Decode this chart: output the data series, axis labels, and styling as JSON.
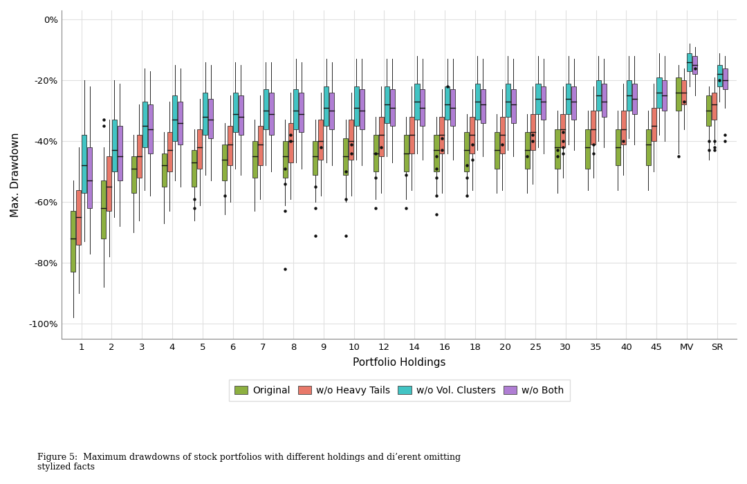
{
  "categories": [
    "1",
    "2",
    "3",
    "4",
    "5",
    "6",
    "7",
    "8",
    "9",
    "10",
    "12",
    "14",
    "16",
    "18",
    "20",
    "25",
    "30",
    "35",
    "40",
    "45",
    "MV",
    "SR"
  ],
  "series_names": [
    "Original",
    "w/o Heavy Tails",
    "w/o Vol. Clusters",
    "w/o Both"
  ],
  "colors": [
    "#8db040",
    "#e8796a",
    "#42c4c4",
    "#b07ed4"
  ],
  "ylabel": "Max. Drawdown",
  "xlabel": "Portfolio Holdings",
  "ytick_labels": [
    "-100%",
    "-80%",
    "-60%",
    "-40%",
    "-20%",
    "0%"
  ],
  "ytick_vals": [
    -1.0,
    -0.8,
    -0.6,
    -0.4,
    -0.2,
    0.0
  ],
  "figcaption": "Figure 5:  Maximum drawdowns of stock portfolios with different holdings and di’erent omitting\nstylized facts",
  "series_data": {
    "Original": {
      "1": {
        "whislo": -0.98,
        "q1": -0.83,
        "med": -0.72,
        "q3": -0.63,
        "whishi": -0.53,
        "fliers": []
      },
      "2": {
        "whislo": -0.88,
        "q1": -0.72,
        "med": -0.62,
        "q3": -0.53,
        "whishi": -0.42,
        "fliers": [
          -0.33,
          -0.35
        ]
      },
      "3": {
        "whislo": -0.7,
        "q1": -0.57,
        "med": -0.49,
        "q3": -0.45,
        "whishi": -0.38,
        "fliers": []
      },
      "4": {
        "whislo": -0.67,
        "q1": -0.55,
        "med": -0.48,
        "q3": -0.44,
        "whishi": -0.37,
        "fliers": []
      },
      "5": {
        "whislo": -0.66,
        "q1": -0.55,
        "med": -0.47,
        "q3": -0.43,
        "whishi": -0.36,
        "fliers": [
          -0.59,
          -0.62
        ]
      },
      "6": {
        "whislo": -0.64,
        "q1": -0.53,
        "med": -0.46,
        "q3": -0.41,
        "whishi": -0.34,
        "fliers": [
          -0.58
        ]
      },
      "7": {
        "whislo": -0.63,
        "q1": -0.52,
        "med": -0.45,
        "q3": -0.4,
        "whishi": -0.33,
        "fliers": []
      },
      "8": {
        "whislo": -0.61,
        "q1": -0.52,
        "med": -0.45,
        "q3": -0.4,
        "whishi": -0.33,
        "fliers": [
          -0.49,
          -0.54,
          -0.63,
          -0.82
        ]
      },
      "9": {
        "whislo": -0.6,
        "q1": -0.51,
        "med": -0.45,
        "q3": -0.4,
        "whishi": -0.33,
        "fliers": [
          -0.55,
          -0.62,
          -0.71
        ]
      },
      "10": {
        "whislo": -0.6,
        "q1": -0.51,
        "med": -0.45,
        "q3": -0.39,
        "whishi": -0.33,
        "fliers": [
          -0.5,
          -0.59,
          -0.71
        ]
      },
      "12": {
        "whislo": -0.59,
        "q1": -0.5,
        "med": -0.44,
        "q3": -0.38,
        "whishi": -0.32,
        "fliers": [
          -0.44,
          -0.52,
          -0.62
        ]
      },
      "14": {
        "whislo": -0.59,
        "q1": -0.5,
        "med": -0.44,
        "q3": -0.38,
        "whishi": -0.32,
        "fliers": [
          -0.51,
          -0.62
        ]
      },
      "16": {
        "whislo": -0.58,
        "q1": -0.5,
        "med": -0.43,
        "q3": -0.38,
        "whishi": -0.32,
        "fliers": [
          -0.45,
          -0.49,
          -0.52,
          -0.58,
          -0.64
        ]
      },
      "18": {
        "whislo": -0.58,
        "q1": -0.5,
        "med": -0.43,
        "q3": -0.37,
        "whishi": -0.31,
        "fliers": [
          -0.48,
          -0.52,
          -0.58
        ]
      },
      "20": {
        "whislo": -0.57,
        "q1": -0.49,
        "med": -0.43,
        "q3": -0.37,
        "whishi": -0.31,
        "fliers": []
      },
      "25": {
        "whislo": -0.57,
        "q1": -0.49,
        "med": -0.43,
        "q3": -0.37,
        "whishi": -0.31,
        "fliers": [
          -0.45
        ]
      },
      "30": {
        "whislo": -0.57,
        "q1": -0.49,
        "med": -0.42,
        "q3": -0.36,
        "whishi": -0.3,
        "fliers": [
          -0.43,
          -0.45
        ]
      },
      "35": {
        "whislo": -0.56,
        "q1": -0.49,
        "med": -0.42,
        "q3": -0.36,
        "whishi": -0.3,
        "fliers": []
      },
      "40": {
        "whislo": -0.56,
        "q1": -0.48,
        "med": -0.42,
        "q3": -0.36,
        "whishi": -0.3,
        "fliers": []
      },
      "45": {
        "whislo": -0.56,
        "q1": -0.48,
        "med": -0.41,
        "q3": -0.36,
        "whishi": -0.3,
        "fliers": []
      },
      "MV": {
        "whislo": -0.44,
        "q1": -0.3,
        "med": -0.24,
        "q3": -0.19,
        "whishi": -0.15,
        "fliers": [
          -0.45
        ]
      },
      "SR": {
        "whislo": -0.46,
        "q1": -0.35,
        "med": -0.3,
        "q3": -0.25,
        "whishi": -0.22,
        "fliers": [
          -0.43,
          -0.4
        ]
      }
    },
    "w/o Heavy Tails": {
      "1": {
        "whislo": -0.9,
        "q1": -0.74,
        "med": -0.65,
        "q3": -0.56,
        "whishi": -0.42,
        "fliers": []
      },
      "2": {
        "whislo": -0.78,
        "q1": -0.63,
        "med": -0.55,
        "q3": -0.45,
        "whishi": -0.33,
        "fliers": []
      },
      "3": {
        "whislo": -0.66,
        "q1": -0.52,
        "med": -0.45,
        "q3": -0.38,
        "whishi": -0.28,
        "fliers": []
      },
      "4": {
        "whislo": -0.63,
        "q1": -0.5,
        "med": -0.43,
        "q3": -0.37,
        "whishi": -0.27,
        "fliers": []
      },
      "5": {
        "whislo": -0.61,
        "q1": -0.49,
        "med": -0.42,
        "q3": -0.36,
        "whishi": -0.26,
        "fliers": []
      },
      "6": {
        "whislo": -0.6,
        "q1": -0.48,
        "med": -0.41,
        "q3": -0.35,
        "whishi": -0.25,
        "fliers": []
      },
      "7": {
        "whislo": -0.59,
        "q1": -0.48,
        "med": -0.41,
        "q3": -0.35,
        "whishi": -0.25,
        "fliers": []
      },
      "8": {
        "whislo": -0.59,
        "q1": -0.47,
        "med": -0.4,
        "q3": -0.34,
        "whishi": -0.24,
        "fliers": [
          -0.4,
          -0.38
        ]
      },
      "9": {
        "whislo": -0.58,
        "q1": -0.46,
        "med": -0.4,
        "q3": -0.33,
        "whishi": -0.24,
        "fliers": [
          -0.42
        ]
      },
      "10": {
        "whislo": -0.58,
        "q1": -0.46,
        "med": -0.4,
        "q3": -0.33,
        "whishi": -0.24,
        "fliers": [
          -0.41,
          -0.44
        ]
      },
      "12": {
        "whislo": -0.57,
        "q1": -0.45,
        "med": -0.38,
        "q3": -0.32,
        "whishi": -0.22,
        "fliers": [
          -0.42
        ]
      },
      "14": {
        "whislo": -0.56,
        "q1": -0.44,
        "med": -0.38,
        "q3": -0.32,
        "whishi": -0.22,
        "fliers": []
      },
      "16": {
        "whislo": -0.57,
        "q1": -0.44,
        "med": -0.38,
        "q3": -0.32,
        "whishi": -0.23,
        "fliers": [
          -0.39,
          -0.43
        ]
      },
      "18": {
        "whislo": -0.56,
        "q1": -0.44,
        "med": -0.38,
        "q3": -0.32,
        "whishi": -0.23,
        "fliers": [
          -0.41,
          -0.46
        ]
      },
      "20": {
        "whislo": -0.56,
        "q1": -0.44,
        "med": -0.38,
        "q3": -0.32,
        "whishi": -0.23,
        "fliers": [
          -0.41
        ]
      },
      "25": {
        "whislo": -0.54,
        "q1": -0.43,
        "med": -0.37,
        "q3": -0.31,
        "whishi": -0.22,
        "fliers": [
          -0.38,
          -0.4
        ]
      },
      "30": {
        "whislo": -0.52,
        "q1": -0.42,
        "med": -0.36,
        "q3": -0.31,
        "whishi": -0.22,
        "fliers": [
          -0.37,
          -0.4,
          -0.44,
          -0.42
        ]
      },
      "35": {
        "whislo": -0.52,
        "q1": -0.41,
        "med": -0.36,
        "q3": -0.3,
        "whishi": -0.22,
        "fliers": [
          -0.41,
          -0.44
        ]
      },
      "40": {
        "whislo": -0.51,
        "q1": -0.41,
        "med": -0.36,
        "q3": -0.3,
        "whishi": -0.21,
        "fliers": [
          -0.4
        ]
      },
      "45": {
        "whislo": -0.5,
        "q1": -0.4,
        "med": -0.35,
        "q3": -0.29,
        "whishi": -0.21,
        "fliers": []
      },
      "MV": {
        "whislo": -0.36,
        "q1": -0.28,
        "med": -0.24,
        "q3": -0.2,
        "whishi": -0.16,
        "fliers": [
          -0.27
        ]
      },
      "SR": {
        "whislo": -0.41,
        "q1": -0.33,
        "med": -0.28,
        "q3": -0.24,
        "whishi": -0.19,
        "fliers": [
          -0.4,
          -0.42,
          -0.43
        ]
      }
    },
    "w/o Vol. Clusters": {
      "1": {
        "whislo": -0.73,
        "q1": -0.57,
        "med": -0.48,
        "q3": -0.38,
        "whishi": -0.2,
        "fliers": []
      },
      "2": {
        "whislo": -0.65,
        "q1": -0.5,
        "med": -0.43,
        "q3": -0.33,
        "whishi": -0.2,
        "fliers": []
      },
      "3": {
        "whislo": -0.56,
        "q1": -0.42,
        "med": -0.35,
        "q3": -0.27,
        "whishi": -0.16,
        "fliers": []
      },
      "4": {
        "whislo": -0.53,
        "q1": -0.4,
        "med": -0.33,
        "q3": -0.25,
        "whishi": -0.15,
        "fliers": []
      },
      "5": {
        "whislo": -0.51,
        "q1": -0.38,
        "med": -0.32,
        "q3": -0.24,
        "whishi": -0.14,
        "fliers": []
      },
      "6": {
        "whislo": -0.49,
        "q1": -0.37,
        "med": -0.31,
        "q3": -0.24,
        "whishi": -0.14,
        "fliers": []
      },
      "7": {
        "whislo": -0.48,
        "q1": -0.36,
        "med": -0.3,
        "q3": -0.23,
        "whishi": -0.14,
        "fliers": []
      },
      "8": {
        "whislo": -0.47,
        "q1": -0.36,
        "med": -0.3,
        "q3": -0.23,
        "whishi": -0.13,
        "fliers": []
      },
      "9": {
        "whislo": -0.47,
        "q1": -0.35,
        "med": -0.29,
        "q3": -0.22,
        "whishi": -0.13,
        "fliers": []
      },
      "10": {
        "whislo": -0.46,
        "q1": -0.35,
        "med": -0.29,
        "q3": -0.22,
        "whishi": -0.13,
        "fliers": []
      },
      "12": {
        "whislo": -0.45,
        "q1": -0.34,
        "med": -0.28,
        "q3": -0.22,
        "whishi": -0.13,
        "fliers": []
      },
      "14": {
        "whislo": -0.44,
        "q1": -0.33,
        "med": -0.27,
        "q3": -0.21,
        "whishi": -0.12,
        "fliers": []
      },
      "16": {
        "whislo": -0.44,
        "q1": -0.33,
        "med": -0.28,
        "q3": -0.22,
        "whishi": -0.13,
        "fliers": [
          -0.22
        ]
      },
      "18": {
        "whislo": -0.43,
        "q1": -0.33,
        "med": -0.27,
        "q3": -0.21,
        "whishi": -0.12,
        "fliers": []
      },
      "20": {
        "whislo": -0.43,
        "q1": -0.32,
        "med": -0.27,
        "q3": -0.21,
        "whishi": -0.12,
        "fliers": []
      },
      "25": {
        "whislo": -0.42,
        "q1": -0.31,
        "med": -0.26,
        "q3": -0.21,
        "whishi": -0.12,
        "fliers": []
      },
      "30": {
        "whislo": -0.41,
        "q1": -0.31,
        "med": -0.26,
        "q3": -0.21,
        "whishi": -0.12,
        "fliers": []
      },
      "35": {
        "whislo": -0.4,
        "q1": -0.3,
        "med": -0.25,
        "q3": -0.2,
        "whishi": -0.12,
        "fliers": []
      },
      "40": {
        "whislo": -0.39,
        "q1": -0.3,
        "med": -0.25,
        "q3": -0.2,
        "whishi": -0.12,
        "fliers": []
      },
      "45": {
        "whislo": -0.38,
        "q1": -0.29,
        "med": -0.24,
        "q3": -0.19,
        "whishi": -0.11,
        "fliers": []
      },
      "MV": {
        "whislo": -0.22,
        "q1": -0.17,
        "med": -0.14,
        "q3": -0.11,
        "whishi": -0.08,
        "fliers": []
      },
      "SR": {
        "whislo": -0.27,
        "q1": -0.22,
        "med": -0.18,
        "q3": -0.15,
        "whishi": -0.11,
        "fliers": [
          -0.2
        ]
      }
    },
    "w/o Both": {
      "1": {
        "whislo": -0.77,
        "q1": -0.62,
        "med": -0.53,
        "q3": -0.42,
        "whishi": -0.22,
        "fliers": []
      },
      "2": {
        "whislo": -0.68,
        "q1": -0.53,
        "med": -0.45,
        "q3": -0.35,
        "whishi": -0.21,
        "fliers": []
      },
      "3": {
        "whislo": -0.58,
        "q1": -0.44,
        "med": -0.36,
        "q3": -0.28,
        "whishi": -0.17,
        "fliers": []
      },
      "4": {
        "whislo": -0.55,
        "q1": -0.41,
        "med": -0.34,
        "q3": -0.27,
        "whishi": -0.16,
        "fliers": []
      },
      "5": {
        "whislo": -0.53,
        "q1": -0.39,
        "med": -0.33,
        "q3": -0.26,
        "whishi": -0.15,
        "fliers": []
      },
      "6": {
        "whislo": -0.51,
        "q1": -0.38,
        "med": -0.32,
        "q3": -0.25,
        "whishi": -0.15,
        "fliers": []
      },
      "7": {
        "whislo": -0.5,
        "q1": -0.38,
        "med": -0.31,
        "q3": -0.24,
        "whishi": -0.14,
        "fliers": []
      },
      "8": {
        "whislo": -0.49,
        "q1": -0.37,
        "med": -0.31,
        "q3": -0.24,
        "whishi": -0.14,
        "fliers": []
      },
      "9": {
        "whislo": -0.48,
        "q1": -0.36,
        "med": -0.3,
        "q3": -0.24,
        "whishi": -0.14,
        "fliers": []
      },
      "10": {
        "whislo": -0.48,
        "q1": -0.36,
        "med": -0.3,
        "q3": -0.23,
        "whishi": -0.13,
        "fliers": []
      },
      "12": {
        "whislo": -0.47,
        "q1": -0.35,
        "med": -0.29,
        "q3": -0.23,
        "whishi": -0.13,
        "fliers": []
      },
      "14": {
        "whislo": -0.46,
        "q1": -0.35,
        "med": -0.29,
        "q3": -0.23,
        "whishi": -0.13,
        "fliers": []
      },
      "16": {
        "whislo": -0.46,
        "q1": -0.35,
        "med": -0.29,
        "q3": -0.23,
        "whishi": -0.13,
        "fliers": []
      },
      "18": {
        "whislo": -0.45,
        "q1": -0.34,
        "med": -0.28,
        "q3": -0.23,
        "whishi": -0.13,
        "fliers": []
      },
      "20": {
        "whislo": -0.45,
        "q1": -0.34,
        "med": -0.28,
        "q3": -0.23,
        "whishi": -0.13,
        "fliers": []
      },
      "25": {
        "whislo": -0.44,
        "q1": -0.33,
        "med": -0.27,
        "q3": -0.22,
        "whishi": -0.13,
        "fliers": []
      },
      "30": {
        "whislo": -0.43,
        "q1": -0.33,
        "med": -0.27,
        "q3": -0.22,
        "whishi": -0.13,
        "fliers": []
      },
      "35": {
        "whislo": -0.42,
        "q1": -0.32,
        "med": -0.27,
        "q3": -0.21,
        "whishi": -0.13,
        "fliers": []
      },
      "40": {
        "whislo": -0.41,
        "q1": -0.31,
        "med": -0.26,
        "q3": -0.21,
        "whishi": -0.12,
        "fliers": []
      },
      "45": {
        "whislo": -0.4,
        "q1": -0.3,
        "med": -0.25,
        "q3": -0.2,
        "whishi": -0.12,
        "fliers": []
      },
      "MV": {
        "whislo": -0.25,
        "q1": -0.18,
        "med": -0.15,
        "q3": -0.12,
        "whishi": -0.09,
        "fliers": [
          -0.16
        ]
      },
      "SR": {
        "whislo": -0.29,
        "q1": -0.23,
        "med": -0.2,
        "q3": -0.16,
        "whishi": -0.12,
        "fliers": [
          -0.4,
          -0.38
        ]
      }
    }
  }
}
